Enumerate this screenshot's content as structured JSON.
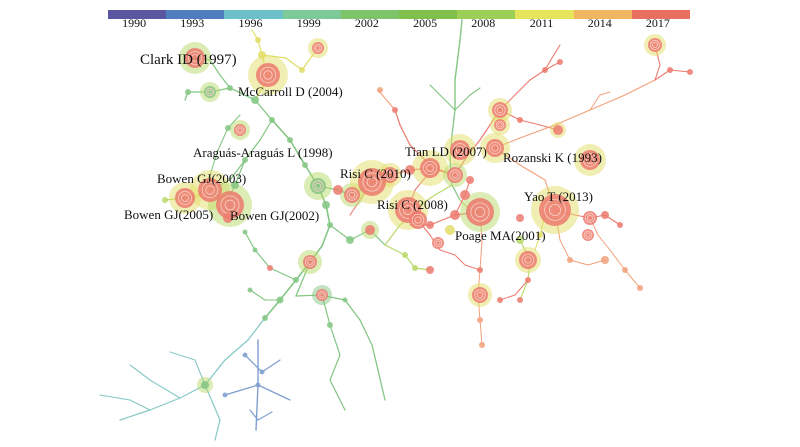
{
  "timeline": {
    "years": [
      "1990",
      "1993",
      "1996",
      "1999",
      "2002",
      "2005",
      "2008",
      "2011",
      "2014",
      "2017"
    ],
    "colors": [
      "#5a56a0",
      "#4f7dc0",
      "#6cc0c7",
      "#7cc99a",
      "#7ec46a",
      "#7fbf4a",
      "#9ccf56",
      "#e6e45a",
      "#f0b660",
      "#e9705e"
    ]
  },
  "clusters": [
    {
      "label": "Clark ID (1997)"
    },
    {
      "label": "McCarroll D (2004)"
    },
    {
      "label": "Araguás-Araguás L (1998)"
    },
    {
      "label": "Bowen GJ(2003)"
    },
    {
      "label": "Bowen GJ(2005)"
    },
    {
      "label": "Bowen GJ(2002)"
    },
    {
      "label": "Tian LD (2007)"
    },
    {
      "label": "Rozanski K (1993)"
    },
    {
      "label": "Risi C (2010)"
    },
    {
      "label": "Risi C (2008)"
    },
    {
      "label": "Yao T (2013)"
    },
    {
      "label": "Poage MA(2001)"
    }
  ]
}
